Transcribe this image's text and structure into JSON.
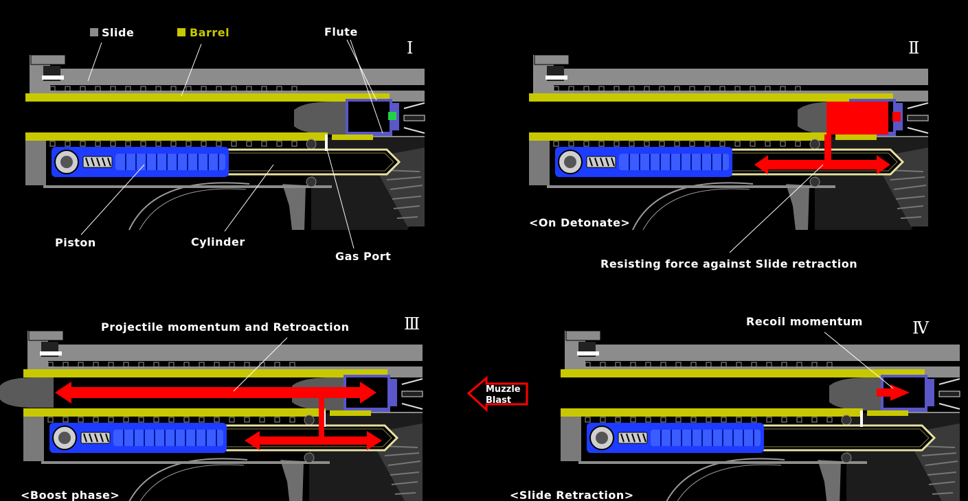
{
  "colors": {
    "background": "#000000",
    "slide": "#8c8c8c",
    "barrel": "#c8c800",
    "piston": "#2a46ff",
    "gas": "#ff0000",
    "primer_green": "#22d046",
    "text": "#ffffff"
  },
  "legend": {
    "slide": "Slide",
    "barrel": "Barrel"
  },
  "panels": [
    {
      "numeral": "I",
      "labels": {
        "flute": "Flute",
        "piston": "Piston",
        "cylinder": "Cylinder",
        "gas_port": "Gas Port"
      }
    },
    {
      "numeral": "Ⅱ",
      "phase": "<On Detonate>",
      "annotation": "Resisting force against Slide retraction"
    },
    {
      "numeral": "Ⅲ",
      "phase": "<Boost phase>",
      "annotation": "Projectile momentum and Retroaction"
    },
    {
      "numeral": "Ⅳ",
      "phase": "<Slide Retraction>",
      "annotation": "Recoil momentum",
      "muzzle_blast": [
        "Muzzle",
        "Blast"
      ]
    }
  ]
}
